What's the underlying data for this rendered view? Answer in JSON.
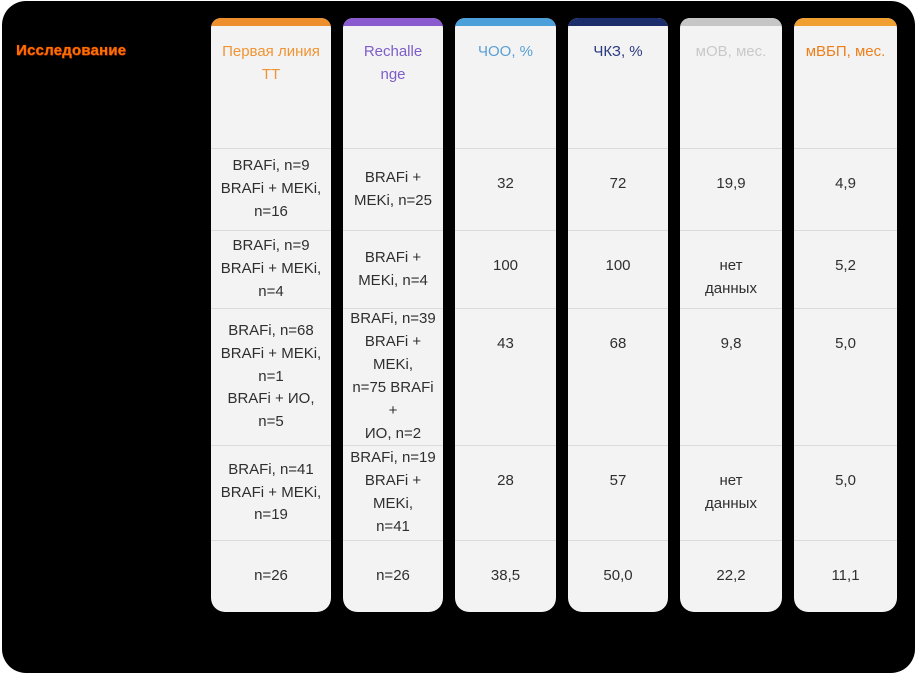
{
  "row_label_header": "Исследование",
  "colors": {
    "board_background": "#000000",
    "card_background": "#f4f3f3",
    "divider": "#dbdbdb",
    "cell_text": "#2f2f2f",
    "row_label": "#f57200"
  },
  "chart_data": {
    "type": "table",
    "row_label_header": "Исследование",
    "columns": [
      {
        "label": "Первая линия ТТ",
        "accent": "#ee8f2e",
        "label_color": "#ef9434"
      },
      {
        "label": "Rechalle\nnge",
        "accent": "#8a5acf",
        "label_color": "#7d5ec7"
      },
      {
        "label": "ЧОО, %",
        "accent": "#4ba0d9",
        "label_color": "#5a9fd4"
      },
      {
        "label": "ЧКЗ, %",
        "accent": "#1b2d6b",
        "label_color": "#2a3b80"
      },
      {
        "label": "мОВ, мес.",
        "accent": "#c6c6c6",
        "label_color": "#c9c9c9"
      },
      {
        "label": "мВБП, мес.",
        "accent": "#f0a030",
        "label_color": "#ec7f1c"
      }
    ],
    "rows": [
      {
        "cells": [
          "BRAFi, n=9\nBRAFi + MEKi,\nn=16",
          "BRAFi +\nMEKi, n=25",
          "32",
          "72",
          "19,9",
          "4,9"
        ]
      },
      {
        "cells": [
          "BRAFi, n=9\nBRAFi + MEKi,\nn=4",
          "BRAFi +\nMEKi, n=4",
          "100",
          "100",
          "нет\nданных",
          "5,2"
        ]
      },
      {
        "cells": [
          "BRAFi, n=68\nBRAFi + MEKi,\nn=1\nBRAFi + ИО,\nn=5",
          "BRAFi, n=39\nBRAFi + MEKi,\nn=75 BRAFi +\nИО, n=2",
          "43",
          "68",
          "9,8",
          "5,0"
        ]
      },
      {
        "cells": [
          "BRAFi, n=41\nBRAFi + MEKi,\nn=19",
          "BRAFi, n=19\nBRAFi + MEKi,\nn=41",
          "28",
          "57",
          "нет\nданных",
          "5,0"
        ]
      },
      {
        "cells": [
          "n=26",
          "n=26",
          "38,5",
          "50,0",
          "22,2",
          "11,1"
        ]
      }
    ]
  }
}
